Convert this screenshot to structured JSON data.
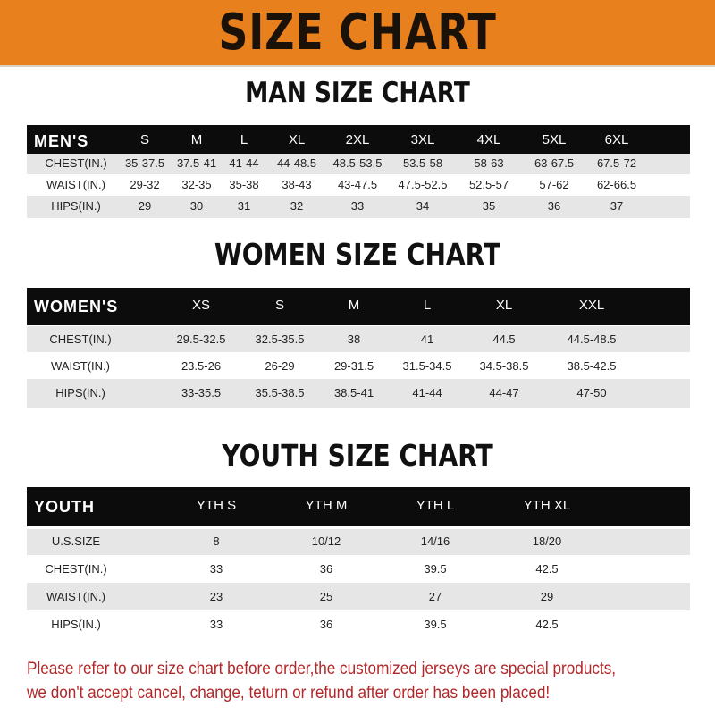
{
  "title": "SIZE CHART",
  "men": {
    "title": "MAN SIZE CHART",
    "header": [
      "MEN'S",
      "S",
      "M",
      "L",
      "XL",
      "2XL",
      "3XL",
      "4XL",
      "5XL",
      "6XL"
    ],
    "rows": [
      [
        "CHEST(IN.)",
        "35-37.5",
        "37.5-41",
        "41-44",
        "44-48.5",
        "48.5-53.5",
        "53.5-58",
        "58-63",
        "63-67.5",
        "67.5-72"
      ],
      [
        "WAIST(IN.)",
        "29-32",
        "32-35",
        "35-38",
        "38-43",
        "43-47.5",
        "47.5-52.5",
        "52.5-57",
        "57-62",
        "62-66.5"
      ],
      [
        "HIPS(IN.)",
        "29",
        "30",
        "31",
        "32",
        "33",
        "34",
        "35",
        "36",
        "37"
      ]
    ]
  },
  "women": {
    "title": "WOMEN SIZE CHART",
    "header": [
      "WOMEN'S",
      "XS",
      "S",
      "M",
      "L",
      "XL",
      "XXL"
    ],
    "rows": [
      [
        "CHEST(IN.)",
        "29.5-32.5",
        "32.5-35.5",
        "38",
        "41",
        "44.5",
        "44.5-48.5"
      ],
      [
        "WAIST(IN.)",
        "23.5-26",
        "26-29",
        "29-31.5",
        "31.5-34.5",
        "34.5-38.5",
        "38.5-42.5"
      ],
      [
        "HIPS(IN.)",
        "33-35.5",
        "35.5-38.5",
        "38.5-41",
        "41-44",
        "44-47",
        "47-50"
      ]
    ]
  },
  "youth": {
    "title": "YOUTH SIZE CHART",
    "header": [
      "YOUTH",
      "YTH S",
      "YTH M",
      "YTH L",
      "YTH XL"
    ],
    "rows": [
      [
        "U.S.SIZE",
        "8",
        "10/12",
        "14/16",
        "18/20"
      ],
      [
        "CHEST(IN.)",
        "33",
        "36",
        "39.5",
        "42.5"
      ],
      [
        "WAIST(IN.)",
        "23",
        "25",
        "27",
        "29"
      ],
      [
        "HIPS(IN.)",
        "33",
        "36",
        "39.5",
        "42.5"
      ]
    ]
  },
  "notice": [
    "Please refer to our size chart before order,the customized jerseys are special products,",
    "we don't accept cancel, change, teturn or refund after order has been placed!"
  ],
  "colors": {
    "banner": "#e8801e",
    "header_row": "#0c0c0c",
    "notice_text": "#b0282a"
  }
}
